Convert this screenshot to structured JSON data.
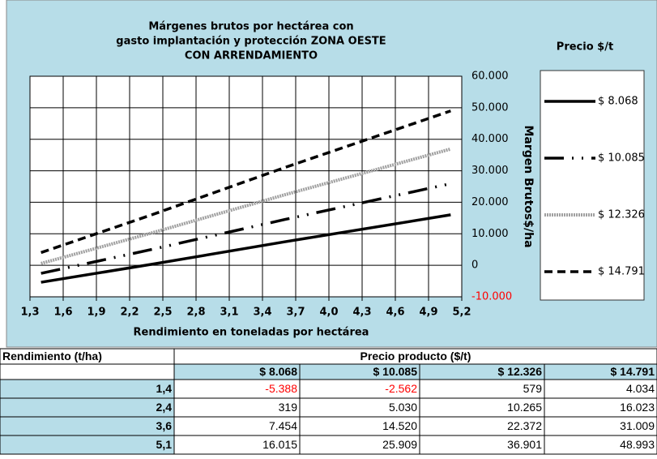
{
  "chart_data": {
    "type": "line",
    "title": [
      "Márgenes brutos por hectárea con",
      "gasto implantación y protección ZONA OESTE",
      "CON ARRENDAMIENTO"
    ],
    "x_label": "Rendimiento en toneladas por hectárea",
    "y_label": "Margen Brutos$/ha",
    "legend_title": "Precio $/t",
    "legend": "right",
    "grid": true,
    "y_axis_side": "right",
    "x": [
      1.4,
      2.4,
      3.6,
      5.1
    ],
    "xlim": [
      1.3,
      5.2
    ],
    "xticks": [
      {
        "value": 1.3,
        "label": "1,3"
      },
      {
        "value": 1.6,
        "label": "1,6"
      },
      {
        "value": 1.9,
        "label": "1,9"
      },
      {
        "value": 2.2,
        "label": "2,2"
      },
      {
        "value": 2.5,
        "label": "2,5"
      },
      {
        "value": 2.8,
        "label": "2,8"
      },
      {
        "value": 3.1,
        "label": "3,1"
      },
      {
        "value": 3.4,
        "label": "3,4"
      },
      {
        "value": 3.7,
        "label": "3,7"
      },
      {
        "value": 4.0,
        "label": "4,0"
      },
      {
        "value": 4.3,
        "label": "4,3"
      },
      {
        "value": 4.6,
        "label": "4,6"
      },
      {
        "value": 4.9,
        "label": "4,9"
      },
      {
        "value": 5.2,
        "label": "5,2"
      }
    ],
    "ylim": [
      -10000,
      60000
    ],
    "yticks": [
      {
        "value": -10000,
        "label": "-10.000"
      },
      0,
      {
        "value": 10000,
        "label": "10.000"
      },
      {
        "value": 20000,
        "label": "20.000"
      },
      {
        "value": 30000,
        "label": "30.000"
      },
      {
        "value": 40000,
        "label": "40.000"
      },
      {
        "value": 50000,
        "label": "50.000"
      },
      {
        "value": 60000,
        "label": "60.000"
      }
    ],
    "negative_label_color": "#ff0000",
    "series": [
      {
        "name": "$ 8.068",
        "color": "#000000",
        "style": "solid",
        "values": [
          -5388,
          319,
          7454,
          16015
        ]
      },
      {
        "name": "$ 10.085",
        "color": "#000000",
        "style": "dashdot",
        "values": [
          -2562,
          5030,
          14520,
          25909
        ]
      },
      {
        "name": "$ 12.326",
        "color": "#a0a0a0",
        "style": "hatched",
        "values": [
          579,
          10265,
          22372,
          36901
        ]
      },
      {
        "name": "$ 14.791",
        "color": "#000000",
        "style": "dashed",
        "values": [
          4034,
          16023,
          31009,
          48993
        ]
      }
    ]
  },
  "table": {
    "header": "Rendimiento (t/ha)",
    "group": "Precio producto ($/t)",
    "columns": [
      "$ 8.068",
      "$ 10.085",
      "$ 12.326",
      "$ 14.791"
    ],
    "rows": [
      {
        "label": "1,4",
        "cells": [
          "-5.388",
          "-2.562",
          "579",
          "4.034"
        ]
      },
      {
        "label": "2,4",
        "cells": [
          "319",
          "5.030",
          "10.265",
          "16.023"
        ]
      },
      {
        "label": "3,6",
        "cells": [
          "7.454",
          "14.520",
          "22.372",
          "31.009"
        ]
      },
      {
        "label": "5,1",
        "cells": [
          "16.015",
          "25.909",
          "36.901",
          "48.993"
        ]
      }
    ]
  }
}
